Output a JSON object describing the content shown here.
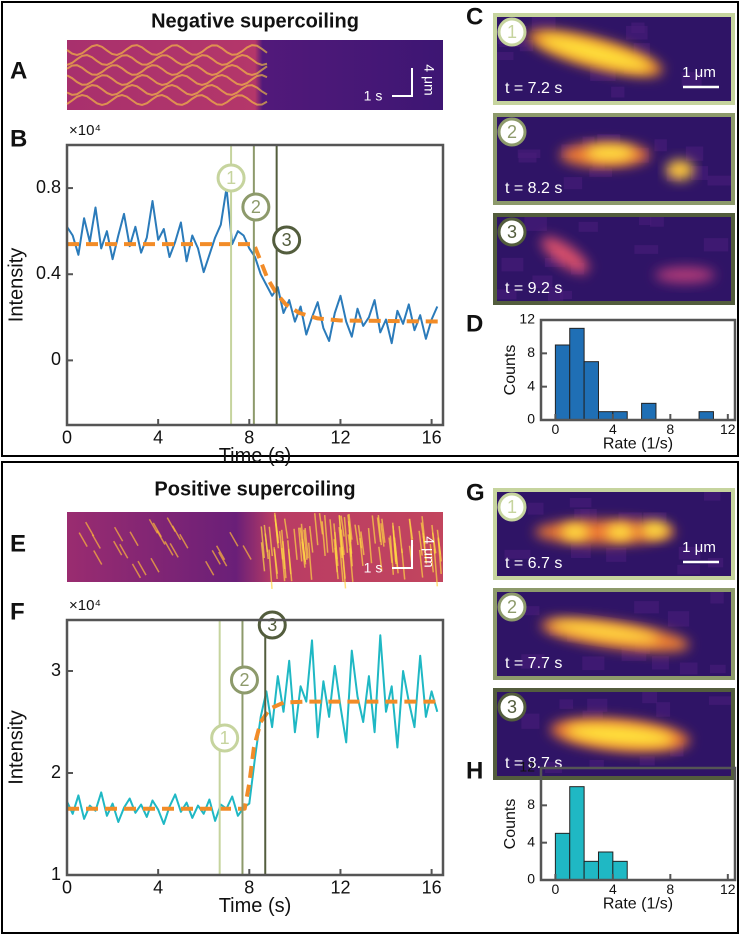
{
  "panel_labels": [
    "A",
    "B",
    "C",
    "D",
    "E",
    "F",
    "G",
    "H"
  ],
  "sections": [
    {
      "title": "Negative supercoiling",
      "kymograph": {
        "time_scale": "1 s",
        "length_scale": "4 μm"
      },
      "snapshots": [
        {
          "marker": "1",
          "time": "t = 7.2 s",
          "scale_bar": "1 μm"
        },
        {
          "marker": "2",
          "time": "t = 8.2 s"
        },
        {
          "marker": "3",
          "time": "t = 9.2 s"
        }
      ]
    },
    {
      "title": "Positive supercoiling",
      "kymograph": {
        "time_scale": "1 s",
        "length_scale": "4 μm"
      },
      "snapshots": [
        {
          "marker": "1",
          "time": "t = 6.7 s",
          "scale_bar": "1 μm"
        },
        {
          "marker": "2",
          "time": "t = 7.7 s"
        },
        {
          "marker": "3",
          "time": "t = 8.7 s"
        }
      ]
    }
  ],
  "chart_data": [
    {
      "type": "line",
      "x_label": "Time (s)",
      "y_label": "Intensity",
      "y_multiplier": "×10⁴",
      "xlim": [
        0,
        16.5
      ],
      "ylim": [
        -0.3,
        1.0
      ],
      "xticks": [
        0,
        4,
        8,
        12,
        16
      ],
      "yticks": [
        0,
        0.4,
        0.8
      ],
      "series": [
        {
          "color": "#2b7bba",
          "x": [
            0,
            0.25,
            0.5,
            0.75,
            1,
            1.25,
            1.5,
            1.75,
            2,
            2.25,
            2.5,
            2.75,
            3,
            3.25,
            3.5,
            3.75,
            4,
            4.25,
            4.5,
            4.75,
            5,
            5.25,
            5.5,
            5.75,
            6,
            6.25,
            6.5,
            6.75,
            7,
            7.25,
            7.5,
            7.75,
            8,
            8.25,
            8.5,
            8.75,
            9,
            9.25,
            9.5,
            9.75,
            10,
            10.25,
            10.5,
            10.75,
            11,
            11.25,
            11.5,
            11.75,
            12,
            12.25,
            12.5,
            12.75,
            13,
            13.25,
            13.5,
            13.75,
            14,
            14.25,
            14.5,
            14.75,
            15,
            15.25,
            15.5,
            15.75,
            16,
            16.25
          ],
          "values": [
            0.62,
            0.58,
            0.49,
            0.66,
            0.55,
            0.71,
            0.52,
            0.6,
            0.47,
            0.58,
            0.68,
            0.53,
            0.62,
            0.5,
            0.57,
            0.74,
            0.56,
            0.61,
            0.48,
            0.55,
            0.64,
            0.46,
            0.58,
            0.52,
            0.41,
            0.49,
            0.57,
            0.63,
            0.8,
            0.54,
            0.6,
            0.58,
            0.52,
            0.48,
            0.4,
            0.35,
            0.3,
            0.34,
            0.22,
            0.28,
            0.18,
            0.25,
            0.12,
            0.2,
            0.27,
            0.15,
            0.09,
            0.22,
            0.3,
            0.18,
            0.11,
            0.24,
            0.16,
            0.2,
            0.28,
            0.13,
            0.19,
            0.08,
            0.23,
            0.17,
            0.26,
            0.14,
            0.21,
            0.1,
            0.19,
            0.25
          ]
        },
        {
          "color": "#f28c28",
          "dashed": true,
          "x": [
            0,
            8.2,
            8.5,
            8.8,
            9.2,
            9.6,
            10.2,
            11,
            12,
            16.5
          ],
          "values": [
            0.54,
            0.54,
            0.46,
            0.38,
            0.31,
            0.26,
            0.22,
            0.195,
            0.185,
            0.18
          ]
        }
      ],
      "markers": [
        {
          "label": "1",
          "x": 7.2,
          "color": "#c6d49e"
        },
        {
          "label": "2",
          "x": 8.2,
          "color": "#8d9a6b"
        },
        {
          "label": "3",
          "x": 9.2,
          "color": "#535d3d"
        }
      ]
    },
    {
      "type": "histogram",
      "x_label": "Rate (1/s)",
      "y_label": "Counts",
      "color": "#1f6fb5",
      "bins": [
        0,
        1,
        2,
        3,
        4,
        5,
        6,
        7,
        8,
        9,
        10,
        11,
        12
      ],
      "values": [
        9,
        11,
        7,
        1,
        1,
        0,
        2,
        0,
        0,
        0,
        1,
        0
      ],
      "xlim": [
        -1,
        12.5
      ],
      "ylim": [
        0,
        12
      ],
      "xticks": [
        0,
        4,
        8,
        12
      ],
      "yticks": [
        0,
        4,
        8,
        12
      ]
    },
    {
      "type": "line",
      "x_label": "Time (s)",
      "y_label": "Intensity",
      "y_multiplier": "×10⁴",
      "xlim": [
        0,
        16.5
      ],
      "ylim": [
        1,
        3.5
      ],
      "xticks": [
        0,
        4,
        8,
        12,
        16
      ],
      "yticks": [
        1,
        2,
        3
      ],
      "series": [
        {
          "color": "#1fb8c4",
          "x": [
            0,
            0.25,
            0.5,
            0.75,
            1,
            1.25,
            1.5,
            1.75,
            2,
            2.25,
            2.5,
            2.75,
            3,
            3.25,
            3.5,
            3.75,
            4,
            4.25,
            4.5,
            4.75,
            5,
            5.25,
            5.5,
            5.75,
            6,
            6.25,
            6.5,
            6.75,
            7,
            7.25,
            7.5,
            7.75,
            8,
            8.25,
            8.5,
            8.75,
            9,
            9.25,
            9.5,
            9.75,
            10,
            10.25,
            10.5,
            10.75,
            11,
            11.25,
            11.5,
            11.75,
            12,
            12.25,
            12.5,
            12.75,
            13,
            13.25,
            13.5,
            13.75,
            14,
            14.25,
            14.5,
            14.75,
            15,
            15.25,
            15.5,
            15.75,
            16,
            16.25
          ],
          "values": [
            1.72,
            1.6,
            1.78,
            1.55,
            1.68,
            1.63,
            1.81,
            1.58,
            1.7,
            1.52,
            1.66,
            1.75,
            1.61,
            1.69,
            1.57,
            1.73,
            1.64,
            1.5,
            1.67,
            1.79,
            1.62,
            1.71,
            1.56,
            1.68,
            1.6,
            1.74,
            1.53,
            1.69,
            1.65,
            1.77,
            1.58,
            1.66,
            1.7,
            2.15,
            2.55,
            2.8,
            2.45,
            2.95,
            2.6,
            3.1,
            2.4,
            2.85,
            2.7,
            3.3,
            2.35,
            2.9,
            2.55,
            3.05,
            2.65,
            2.3,
            3.2,
            2.75,
            2.5,
            2.95,
            2.4,
            3.35,
            2.6,
            2.85,
            2.25,
            3.0,
            2.7,
            2.45,
            3.15,
            2.55,
            2.8,
            2.6
          ]
        },
        {
          "color": "#f28c28",
          "dashed": true,
          "x": [
            0,
            7.8,
            8.0,
            8.2,
            8.5,
            8.9,
            9.5,
            10.5,
            16.5
          ],
          "values": [
            1.65,
            1.65,
            1.9,
            2.25,
            2.5,
            2.63,
            2.69,
            2.7,
            2.7
          ]
        }
      ],
      "markers": [
        {
          "label": "1",
          "x": 6.7,
          "color": "#c6d49e"
        },
        {
          "label": "2",
          "x": 7.7,
          "color": "#8d9a6b"
        },
        {
          "label": "3",
          "x": 8.7,
          "color": "#535d3d"
        }
      ]
    },
    {
      "type": "histogram",
      "x_label": "Rate (1/s)",
      "y_label": "Counts",
      "color": "#1fb8c4",
      "bins": [
        0,
        1,
        2,
        3,
        4,
        5
      ],
      "values": [
        5,
        10,
        2,
        3,
        2
      ],
      "xlim": [
        -1,
        12.5
      ],
      "ylim": [
        0,
        12
      ],
      "xticks": [
        0,
        4,
        8,
        12
      ],
      "yticks": [
        0,
        4,
        8,
        12
      ]
    }
  ]
}
